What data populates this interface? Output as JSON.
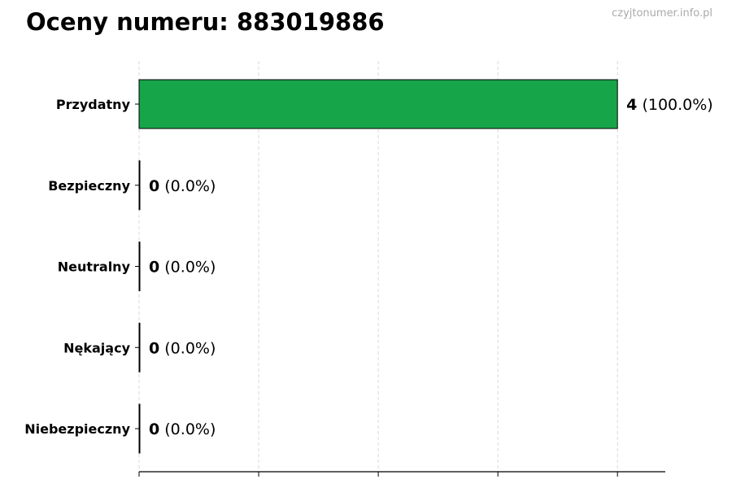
{
  "header": {
    "title": "Oceny numeru: 883019886",
    "watermark": "czyjtonumer.info.pl"
  },
  "chart_data": {
    "type": "bar",
    "orientation": "horizontal",
    "title": "Oceny numeru: 883019886",
    "xlabel": "",
    "ylabel": "",
    "categories": [
      "Przydatny",
      "Bezpieczny",
      "Neutralny",
      "Nękający",
      "Niebezpieczny"
    ],
    "values": [
      4,
      0,
      0,
      0,
      0
    ],
    "data_labels": [
      {
        "count": "4",
        "percent": "(100.0%)"
      },
      {
        "count": "0",
        "percent": "(0.0%)"
      },
      {
        "count": "0",
        "percent": "(0.0%)"
      },
      {
        "count": "0",
        "percent": "(0.0%)"
      },
      {
        "count": "0",
        "percent": "(0.0%)"
      }
    ],
    "xlim": [
      0,
      4.4
    ],
    "x_ticks": [
      0,
      1,
      2,
      3,
      4
    ],
    "x_tick_labels_shown": false,
    "grid": "vertical dashed",
    "bar_color": "#17a54a",
    "bar_edge_color": "#000000"
  }
}
